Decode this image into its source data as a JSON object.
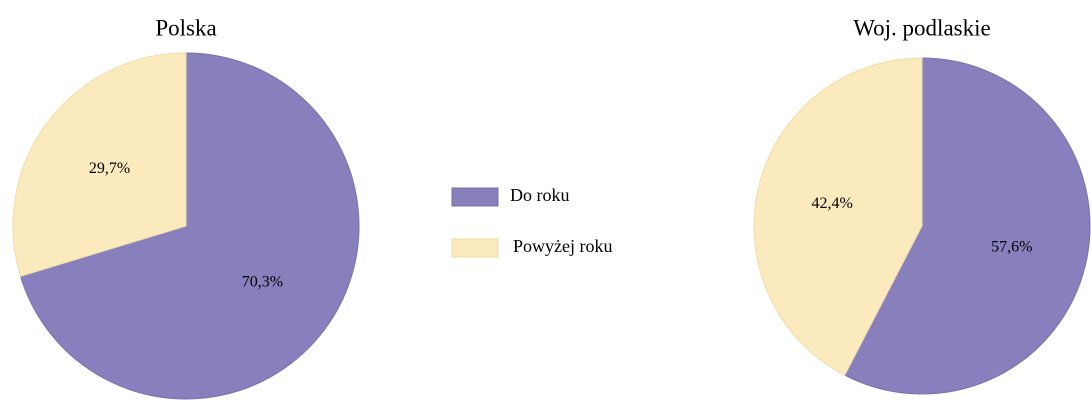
{
  "chart_data": [
    {
      "type": "pie",
      "title": "Polska",
      "categories": [
        "Do roku",
        "Powyżej roku"
      ],
      "values": [
        70.3,
        29.7
      ],
      "value_labels": [
        "70,3%",
        "29,7%"
      ],
      "colors": [
        "#887fbd",
        "#faeabe"
      ]
    },
    {
      "type": "pie",
      "title": "Woj. podlaskie",
      "categories": [
        "Do roku",
        "Powyżej roku"
      ],
      "values": [
        57.6,
        42.4
      ],
      "value_labels": [
        "57,6%",
        "42,4%"
      ],
      "colors": [
        "#887fbd",
        "#faeabe"
      ]
    }
  ]
}
